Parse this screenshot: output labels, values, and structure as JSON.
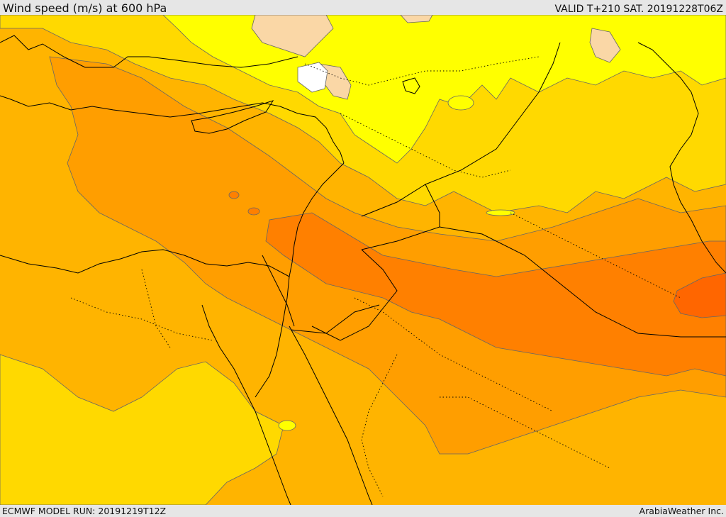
{
  "header": {
    "title": "Wind speed (m/s) at 600 hPa",
    "valid_time": "VALID T+210 SAT. 20191228T06Z"
  },
  "footer": {
    "model_run": "ECMWF MODEL RUN: 20191219T12Z",
    "credit": "ArabiaWeather Inc."
  },
  "map": {
    "variable": "wind speed",
    "level": "600 hPa",
    "colors": {
      "calm": "#ffffff",
      "light": "#fad7a6",
      "yellow": "#ffff00",
      "yellow_gold": "#ffd900",
      "light_orange": "#ffb400",
      "orange": "#ff9e00",
      "dark_orange": "#ff8000",
      "strong_orange": "#ff6600",
      "contour": "#666666",
      "coastline": "#000000"
    }
  }
}
